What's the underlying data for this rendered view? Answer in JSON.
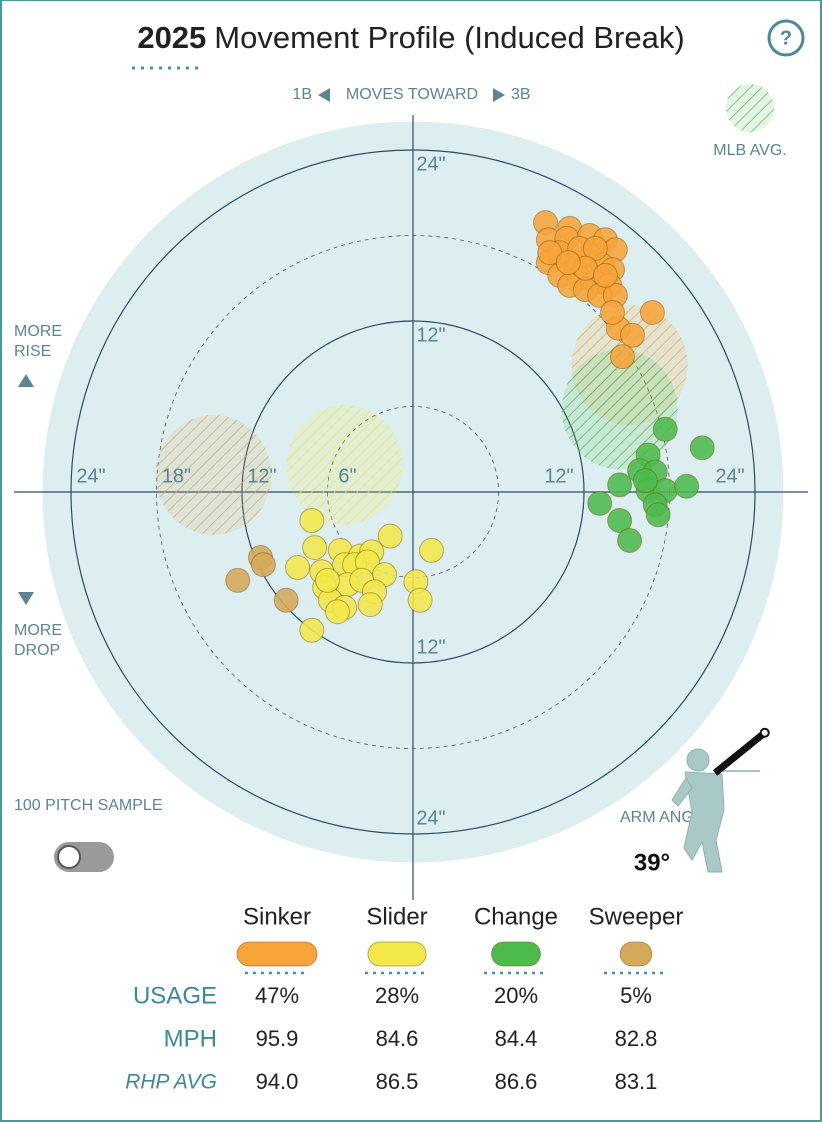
{
  "chart_data": {
    "type": "movement",
    "title_year": "2025",
    "title": "Movement Profile (Induced Break)",
    "help_label": "?",
    "direction": {
      "left": "1B",
      "label": "MOVES TOWARD",
      "right": "3B"
    },
    "avg_legend_label": "MLB AVG.",
    "y_direction": {
      "up": "MORE RISE",
      "down": "MORE DROP"
    },
    "sample_label": "100 PITCH SAMPLE",
    "arm_angle": {
      "label": "ARM ANGLE",
      "value": 39,
      "value_label": "39°"
    },
    "rlim": [
      0,
      26
    ],
    "rticks": [
      {
        "value": 6,
        "label": "6\"",
        "style": "dashed"
      },
      {
        "value": 12,
        "label": "12\"",
        "style": "solid"
      },
      {
        "value": 18,
        "label": "18\"",
        "style": "dashed"
      },
      {
        "value": 24,
        "label": "24\"",
        "style": "solid"
      }
    ],
    "series": [
      {
        "name": "Sinker",
        "color": "#f7a43a",
        "x": [
          9.3,
          11.0,
          9.5,
          10.8,
          12.4,
          13.5,
          14.2,
          9.5,
          11.4,
          12.4,
          13.3,
          14.0,
          10.3,
          11.7,
          12.8,
          13.8,
          11.0,
          12.1,
          13.1,
          14.2,
          10.3,
          11.7,
          12.8,
          12.1,
          13.5,
          16.8,
          14.4,
          15.4,
          14.0,
          14.7,
          9.6,
          10.9
        ],
        "y": [
          18.9,
          18.5,
          17.7,
          17.8,
          18.0,
          17.7,
          17.0,
          16.1,
          16.1,
          16.6,
          15.9,
          15.6,
          15.2,
          15.0,
          14.7,
          14.5,
          14.5,
          14.2,
          13.8,
          13.8,
          16.8,
          17.1,
          17.1,
          15.7,
          15.2,
          12.6,
          11.5,
          11.0,
          12.6,
          9.5,
          16.8,
          16.1
        ],
        "avg_x": 15.2,
        "avg_y": 8.9
      },
      {
        "name": "Slider",
        "color": "#f2e84a",
        "x": [
          -7.1,
          -1.6,
          1.3,
          -6.9,
          -5.1,
          -3.7,
          -2.9,
          -8.1,
          -6.4,
          -4.8,
          -4.1,
          -3.2,
          -2.0,
          0.2,
          -6.2,
          -4.6,
          -3.6,
          -2.7,
          -5.8,
          -4.8,
          -5.3,
          -3.0,
          -7.1,
          0.5,
          -6.0
        ],
        "y": [
          -2.0,
          -3.1,
          -4.1,
          -3.9,
          -4.1,
          -4.5,
          -4.2,
          -5.3,
          -5.6,
          -5.1,
          -5.1,
          -4.9,
          -5.8,
          -6.3,
          -6.7,
          -6.5,
          -6.2,
          -7.0,
          -7.6,
          -8.1,
          -8.4,
          -7.9,
          -9.7,
          -7.6,
          -6.2
        ],
        "avg_x": -4.8,
        "avg_y": 1.9
      },
      {
        "name": "Change",
        "color": "#4cbb4c",
        "x": [
          17.7,
          20.3,
          16.5,
          15.9,
          17.0,
          14.5,
          16.5,
          17.7,
          19.2,
          13.1,
          17.0,
          14.5,
          17.2,
          15.2,
          16.3
        ],
        "y": [
          4.4,
          3.1,
          2.6,
          1.5,
          1.4,
          0.5,
          0.1,
          0.1,
          0.4,
          -0.8,
          -0.9,
          -2.0,
          -1.6,
          -3.4,
          0.8
        ],
        "avg_x": 14.5,
        "avg_y": 5.8
      },
      {
        "name": "Sweeper",
        "color": "#d4a95a",
        "x": [
          -10.7,
          -10.5,
          -12.3,
          -8.9
        ],
        "y": [
          -4.6,
          -5.1,
          -6.2,
          -7.6
        ],
        "avg_x": -14.0,
        "avg_y": 1.2
      }
    ],
    "table": {
      "rows": [
        {
          "label": "USAGE",
          "values": [
            47,
            28,
            20,
            5
          ],
          "value_labels": [
            "47%",
            "28%",
            "20%",
            "5%"
          ]
        },
        {
          "label": "MPH",
          "values": [
            95.9,
            84.6,
            84.4,
            82.8
          ]
        },
        {
          "label": "RHP AVG",
          "values": [
            94.0,
            86.5,
            86.6,
            83.1
          ],
          "value_labels": [
            "94.0",
            "86.5",
            "86.6",
            "83.1"
          ]
        }
      ]
    }
  }
}
